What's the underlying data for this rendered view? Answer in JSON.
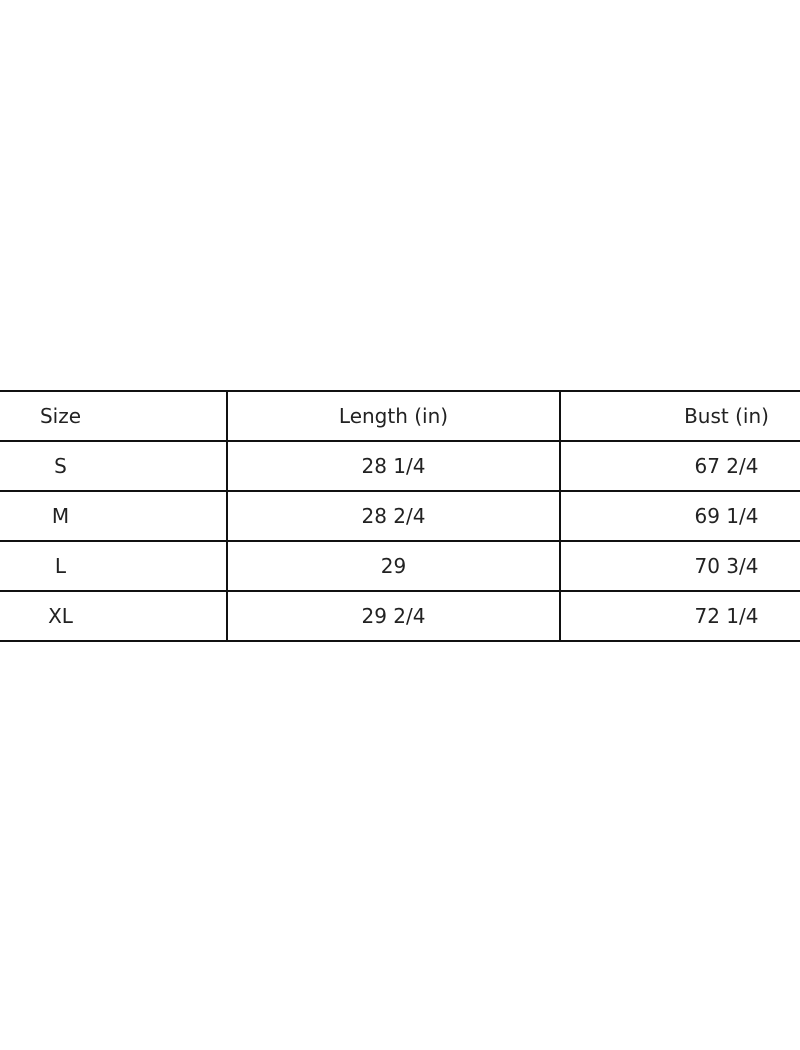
{
  "table": {
    "headers": [
      "Size",
      "Length (in)",
      "Bust (in)"
    ],
    "rows": [
      [
        "S",
        "28 1/4",
        "67 2/4"
      ],
      [
        "M",
        "28 2/4",
        "69 1/4"
      ],
      [
        "L",
        "29",
        "70 3/4"
      ],
      [
        "XL",
        "29 2/4",
        "72 1/4"
      ]
    ]
  }
}
